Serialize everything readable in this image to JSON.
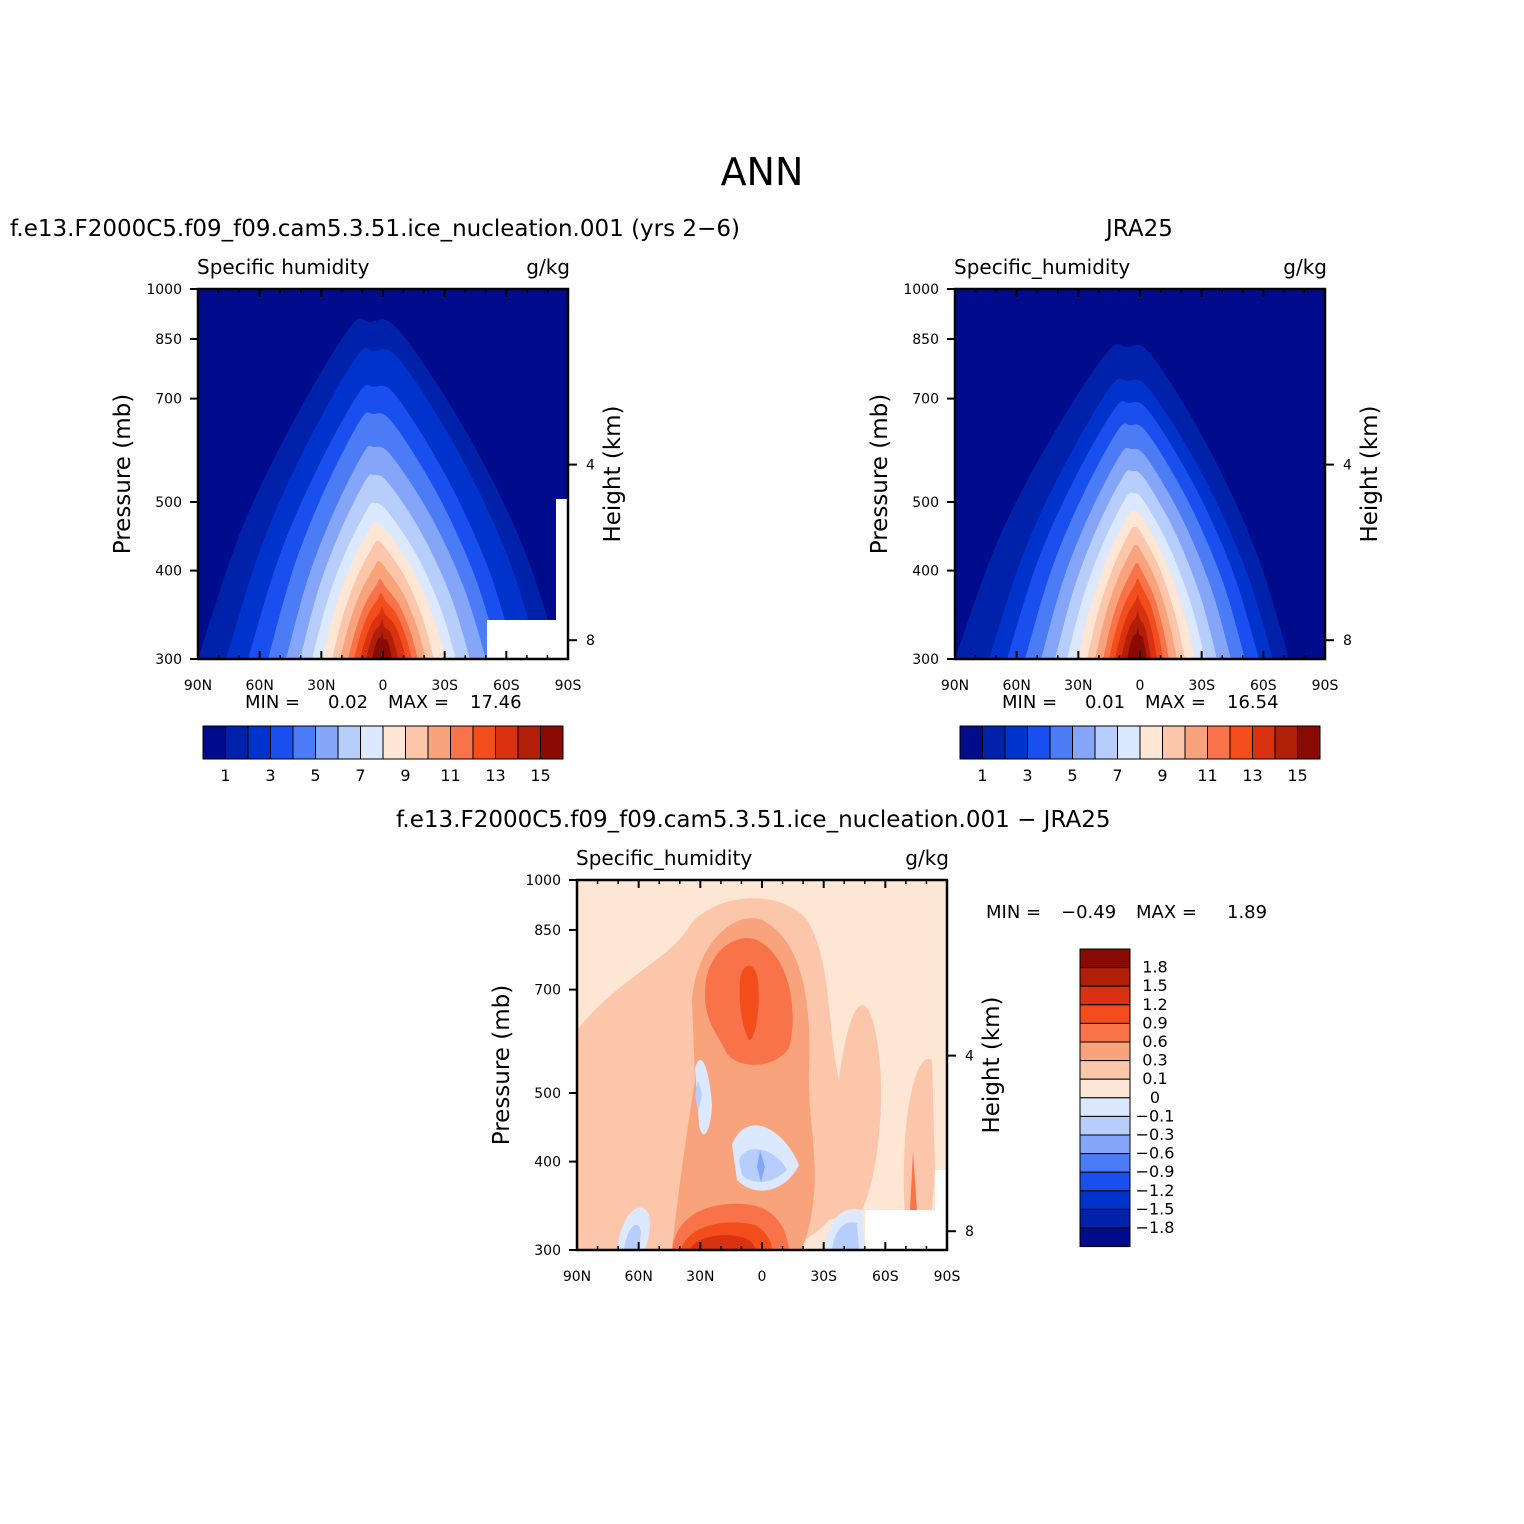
{
  "figure": {
    "title": "ANN"
  },
  "panels": [
    {
      "title": "f.e13.F2000C5.f09_f09.cam5.3.51.ice_nucleation.001 (yrs 2−6)",
      "left_label": "Specific humidity",
      "right_label": "g/kg",
      "min_text": "MIN =",
      "min_value": "0.02",
      "max_text": "MAX =",
      "max_value": "17.46"
    },
    {
      "title": "JRA25",
      "left_label": "Specific_humidity",
      "right_label": "g/kg",
      "min_text": "MIN =",
      "min_value": "0.01",
      "max_text": "MAX =",
      "max_value": "16.54"
    },
    {
      "title": "f.e13.F2000C5.f09_f09.cam5.3.51.ice_nucleation.001 − JRA25",
      "left_label": "Specific_humidity",
      "right_label": "g/kg",
      "min_text": "MIN =",
      "min_value": "−0.49",
      "max_text": "MAX =",
      "max_value": "1.89"
    }
  ],
  "chart_data": [
    {
      "type": "heatmap",
      "title": "f.e13.F2000C5.f09_f09.cam5.3.51.ice_nucleation.001 (yrs 2−6)",
      "variable": "Specific humidity",
      "units": "g/kg",
      "xlabel": "",
      "ylabel": "Pressure (mb)",
      "y2label": "Height (km)",
      "x_ticks": [
        "90N",
        "60N",
        "30N",
        "0",
        "30S",
        "60S",
        "90S"
      ],
      "y_ticks": [
        "300",
        "400",
        "500",
        "700",
        "850",
        "1000"
      ],
      "y2_ticks": [
        "8",
        "4"
      ],
      "ylim": [
        1000,
        300
      ],
      "min": 0.02,
      "max": 17.46,
      "contour_levels": [
        1,
        2,
        3,
        4,
        5,
        6,
        7,
        8,
        9,
        10,
        11,
        12,
        13,
        14,
        15
      ],
      "colorbar_labels": [
        "1",
        "3",
        "5",
        "7",
        "9",
        "11",
        "13",
        "15"
      ],
      "colors": [
        "#000c8c",
        "#0022aa",
        "#0033cc",
        "#1a4fef",
        "#4b7bf5",
        "#85a6f8",
        "#b7cdfb",
        "#dbe8fd",
        "#fde6d4",
        "#fcc6aa",
        "#f9a37c",
        "#f8724a",
        "#f24d1b",
        "#d93210",
        "#b01f08",
        "#8a0a04"
      ]
    },
    {
      "type": "heatmap",
      "title": "JRA25",
      "variable": "Specific_humidity",
      "units": "g/kg",
      "xlabel": "",
      "ylabel": "Pressure (mb)",
      "y2label": "Height (km)",
      "x_ticks": [
        "90N",
        "60N",
        "30N",
        "0",
        "30S",
        "60S",
        "90S"
      ],
      "y_ticks": [
        "300",
        "400",
        "500",
        "700",
        "850",
        "1000"
      ],
      "y2_ticks": [
        "8",
        "4"
      ],
      "ylim": [
        1000,
        300
      ],
      "min": 0.01,
      "max": 16.54,
      "contour_levels": [
        1,
        2,
        3,
        4,
        5,
        6,
        7,
        8,
        9,
        10,
        11,
        12,
        13,
        14,
        15
      ],
      "colorbar_labels": [
        "1",
        "3",
        "5",
        "7",
        "9",
        "11",
        "13",
        "15"
      ],
      "colors": [
        "#000c8c",
        "#0022aa",
        "#0033cc",
        "#1a4fef",
        "#4b7bf5",
        "#85a6f8",
        "#b7cdfb",
        "#dbe8fd",
        "#fde6d4",
        "#fcc6aa",
        "#f9a37c",
        "#f8724a",
        "#f24d1b",
        "#d93210",
        "#b01f08",
        "#8a0a04"
      ]
    },
    {
      "type": "heatmap",
      "title": "f.e13.F2000C5.f09_f09.cam5.3.51.ice_nucleation.001 − JRA25",
      "variable": "Specific_humidity",
      "units": "g/kg",
      "xlabel": "",
      "ylabel": "Pressure (mb)",
      "y2label": "Height (km)",
      "x_ticks": [
        "90N",
        "60N",
        "30N",
        "0",
        "30S",
        "60S",
        "90S"
      ],
      "y_ticks": [
        "300",
        "400",
        "500",
        "700",
        "850",
        "1000"
      ],
      "y2_ticks": [
        "8",
        "4"
      ],
      "ylim": [
        1000,
        300
      ],
      "min": -0.49,
      "max": 1.89,
      "contour_levels": [
        -1.8,
        -1.5,
        -1.2,
        -0.9,
        -0.6,
        -0.3,
        -0.1,
        0,
        0.1,
        0.3,
        0.6,
        0.9,
        1.2,
        1.5,
        1.8
      ],
      "colorbar_labels": [
        "1.8",
        "1.5",
        "1.2",
        "0.9",
        "0.6",
        "0.3",
        "0.1",
        "0",
        "−0.1",
        "−0.3",
        "−0.6",
        "−0.9",
        "−1.2",
        "−1.5",
        "−1.8"
      ],
      "colors": [
        "#000c8c",
        "#0022aa",
        "#0033cc",
        "#1a4fef",
        "#4b7bf5",
        "#85a6f8",
        "#b7cdfb",
        "#dbe8fd",
        "#fde6d4",
        "#fcc6aa",
        "#f9a37c",
        "#f8724a",
        "#f24d1b",
        "#d93210",
        "#b01f08",
        "#8a0a04"
      ]
    }
  ]
}
